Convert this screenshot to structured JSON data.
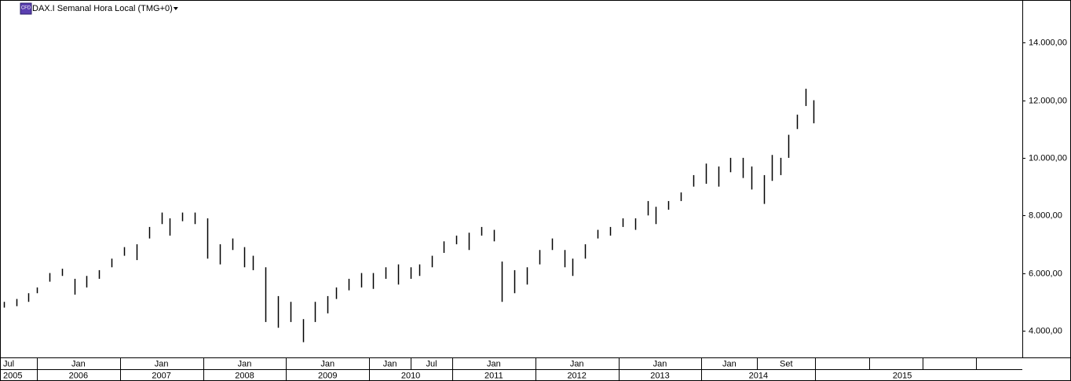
{
  "chart_data": {
    "type": "hl-bar",
    "title": "DAX.I Semanal Hora Local (TMG+0)",
    "icon_label": "CFD",
    "ylim": [
      3070,
      15480
    ],
    "yticks": [
      {
        "value": 4000,
        "label": "4.000,00"
      },
      {
        "value": 6000,
        "label": "6.000,00"
      },
      {
        "value": 8000,
        "label": "8.000,00"
      },
      {
        "value": 10000,
        "label": "10.000,00"
      },
      {
        "value": 12000,
        "label": "12.000,00"
      },
      {
        "value": 14000,
        "label": "14.000,00"
      }
    ],
    "xlim": [
      2005.556,
      2017.862
    ],
    "month_ticks": [
      {
        "value": 2005.556,
        "label": "Jul"
      },
      {
        "value": 2006,
        "label": "Jan"
      },
      {
        "value": 2007,
        "label": "Jan"
      },
      {
        "value": 2008,
        "label": "Jan"
      },
      {
        "value": 2009,
        "label": "Jan"
      },
      {
        "value": 2010,
        "label": "Jan"
      },
      {
        "value": 2010.5,
        "label": "Jul"
      },
      {
        "value": 2011,
        "label": "Jan"
      },
      {
        "value": 2012,
        "label": "Jan"
      },
      {
        "value": 2013,
        "label": "Jan"
      },
      {
        "value": 2014,
        "label": "Jan"
      },
      {
        "value": 2014.67,
        "label": "Set"
      }
    ],
    "year_ticks": [
      {
        "value": 2005.556,
        "label": "2005"
      },
      2006,
      2007,
      2008,
      2009,
      2010,
      2011,
      2012,
      2013,
      2014,
      {
        "value": 2015.37,
        "label": "2015"
      }
    ],
    "series": [
      {
        "color": "#000000",
        "x": [
          2005.6,
          2005.75,
          2005.9,
          2006.0,
          2006.15,
          2006.3,
          2006.45,
          2006.6,
          2006.75,
          2006.9,
          2007.05,
          2007.2,
          2007.35,
          2007.5,
          2007.6,
          2007.75,
          2007.9,
          2008.05,
          2008.2,
          2008.35,
          2008.5,
          2008.6,
          2008.75,
          2008.9,
          2009.05,
          2009.2,
          2009.35,
          2009.5,
          2009.6,
          2009.75,
          2009.9,
          2010.05,
          2010.2,
          2010.35,
          2010.5,
          2010.6,
          2010.75,
          2010.9,
          2011.05,
          2011.2,
          2011.35,
          2011.5,
          2011.6,
          2011.75,
          2011.9,
          2012.05,
          2012.2,
          2012.35,
          2012.45,
          2012.6,
          2012.75,
          2012.9,
          2013.05,
          2013.2,
          2013.35,
          2013.45,
          2013.6,
          2013.75,
          2013.9,
          2014.05,
          2014.2,
          2014.35,
          2014.5,
          2014.6,
          2014.75,
          2014.85,
          2014.95,
          2015.05,
          2015.15,
          2015.25,
          2015.35
        ],
        "low": [
          4800,
          4850,
          5000,
          5300,
          5700,
          5900,
          5250,
          5500,
          5800,
          6200,
          6600,
          6450,
          7200,
          7700,
          7300,
          7800,
          7700,
          6500,
          6300,
          6800,
          6200,
          6100,
          4300,
          4100,
          4300,
          3600,
          4300,
          4600,
          5100,
          5400,
          5500,
          5450,
          5800,
          5600,
          5800,
          5900,
          6200,
          6700,
          7000,
          6800,
          7300,
          7100,
          5000,
          5300,
          5600,
          6300,
          6800,
          6200,
          5900,
          6500,
          7200,
          7300,
          7600,
          7500,
          8000,
          7700,
          8200,
          8500,
          9000,
          9100,
          9000,
          9500,
          9300,
          8900,
          8400,
          9200,
          9400,
          10000,
          11000,
          11800,
          11200
        ],
        "high": [
          5000,
          5100,
          5300,
          5500,
          6000,
          6150,
          5800,
          5900,
          6100,
          6500,
          6900,
          7000,
          7600,
          8100,
          7900,
          8100,
          8100,
          7900,
          7000,
          7200,
          6900,
          6600,
          6200,
          5200,
          5000,
          4400,
          5000,
          5200,
          5500,
          5800,
          6000,
          6000,
          6200,
          6300,
          6200,
          6300,
          6600,
          7100,
          7300,
          7400,
          7600,
          7500,
          6400,
          6100,
          6200,
          6800,
          7200,
          6800,
          6500,
          7000,
          7500,
          7600,
          7900,
          7900,
          8500,
          8300,
          8500,
          8800,
          9400,
          9800,
          9700,
          10000,
          10000,
          9700,
          9400,
          10100,
          10000,
          10800,
          11500,
          12400,
          12000
        ]
      }
    ]
  }
}
